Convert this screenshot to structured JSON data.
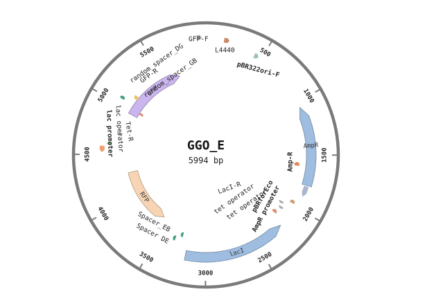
{
  "plasmid": {
    "name": "GGO_E",
    "length_label": "5994 bp",
    "length_bp": 5994
  },
  "ticks": [
    {
      "bp": 500,
      "label": "500"
    },
    {
      "bp": 1000,
      "label": "1000"
    },
    {
      "bp": 1500,
      "label": "1500"
    },
    {
      "bp": 2000,
      "label": "2000"
    },
    {
      "bp": 2500,
      "label": "2500"
    },
    {
      "bp": 3000,
      "label": "3000"
    },
    {
      "bp": 3500,
      "label": "3500"
    },
    {
      "bp": 4000,
      "label": "4000"
    },
    {
      "bp": 4500,
      "label": "4500"
    },
    {
      "bp": 5000,
      "label": "5000"
    },
    {
      "bp": 5500,
      "label": "5500"
    }
  ],
  "features": [
    {
      "name": "GFP-F",
      "start": 5920,
      "end": 5960,
      "strand": 1,
      "color": "#b0b3b8",
      "label": "GFP-F",
      "bold": false
    },
    {
      "name": "L4440",
      "start": 150,
      "end": 195,
      "strand": 1,
      "color": "#c98a64",
      "label": "L4440",
      "bold": false
    },
    {
      "name": "pBR322ori-F",
      "start": 430,
      "end": 470,
      "strand": 1,
      "color": "#9fc4a8",
      "label": "pBR322ori-F",
      "bold": true
    },
    {
      "name": "AmpR",
      "start": 1050,
      "end": 1780,
      "strand": -1,
      "color": "#9fbde0",
      "label": "AmpR",
      "bold": false
    },
    {
      "name": "Amp-R",
      "start": 1570,
      "end": 1610,
      "strand": -1,
      "color": "#e0874f",
      "label": "Amp-R",
      "bold": true
    },
    {
      "name": "AmpR promoter",
      "start": 1790,
      "end": 1890,
      "strand": 1,
      "color": "#a9b6cc",
      "label": "AmpR promoter",
      "bold": true
    },
    {
      "name": "pBRforEco",
      "start": 1950,
      "end": 1985,
      "strand": -1,
      "color": "#c9a27c",
      "label": "pBRforEco",
      "bold": true
    },
    {
      "name": "tet operator 2",
      "start": 2020,
      "end": 2045,
      "strand": 1,
      "color": "#aaaaaa",
      "label": "tet operator",
      "bold": false
    },
    {
      "name": "tet operator 1",
      "start": 2070,
      "end": 2095,
      "strand": 1,
      "color": "#aaaaaa",
      "label": "tet operator",
      "bold": false
    },
    {
      "name": "LacI-R",
      "start": 2130,
      "end": 2165,
      "strand": -1,
      "color": "#d88e6f",
      "label": "LacI-R",
      "bold": false
    },
    {
      "name": "lacI",
      "start": 2220,
      "end": 3190,
      "strand": -1,
      "color": "#9fbde0",
      "label": "lacI",
      "bold": false
    },
    {
      "name": "Spacer_EB",
      "start": 3260,
      "end": 3290,
      "strand": 1,
      "color": "#3f9e80",
      "label": "Spacer_EB",
      "bold": false
    },
    {
      "name": "Spacer DE",
      "start": 3330,
      "end": 3360,
      "strand": 1,
      "color": "#3f9e80",
      "label": "Spacer DE",
      "bold": false
    },
    {
      "name": "RFP",
      "start": 3560,
      "end": 4280,
      "strand": -1,
      "color": "#f7d4b4",
      "label": "RFP",
      "bold": false
    },
    {
      "name": "lac promoter",
      "start": 4520,
      "end": 4580,
      "strand": -1,
      "color": "#f0a070",
      "label": "lac promoter",
      "bold": true
    },
    {
      "name": "lac operator",
      "start": 4600,
      "end": 4625,
      "strand": 1,
      "color": "#7dc47d",
      "label": "lac operator",
      "bold": false
    },
    {
      "name": "Tet-R",
      "start": 4700,
      "end": 4740,
      "strand": -1,
      "color": "#b0b3b8",
      "label": "Tet-R",
      "bold": false
    },
    {
      "name": "GFP",
      "start": 4970,
      "end": 5690,
      "strand": 1,
      "color": "#cab5ee",
      "label": "GFP",
      "bold": false
    },
    {
      "name": "random_spacer_GB",
      "start": 5015,
      "end": 5045,
      "strand": 1,
      "color": "#d88e6f",
      "label": "random_spacer_GB",
      "bold": false
    },
    {
      "name": "GFP-R",
      "start": 5130,
      "end": 5170,
      "strand": -1,
      "color": "#e8c46a",
      "label": "GFP-R",
      "bold": false
    },
    {
      "name": "random_spacer_DG",
      "start": 5060,
      "end": 5090,
      "strand": 1,
      "color": "#3f9e80",
      "label": "random_spacer_DG",
      "bold": false
    }
  ]
}
